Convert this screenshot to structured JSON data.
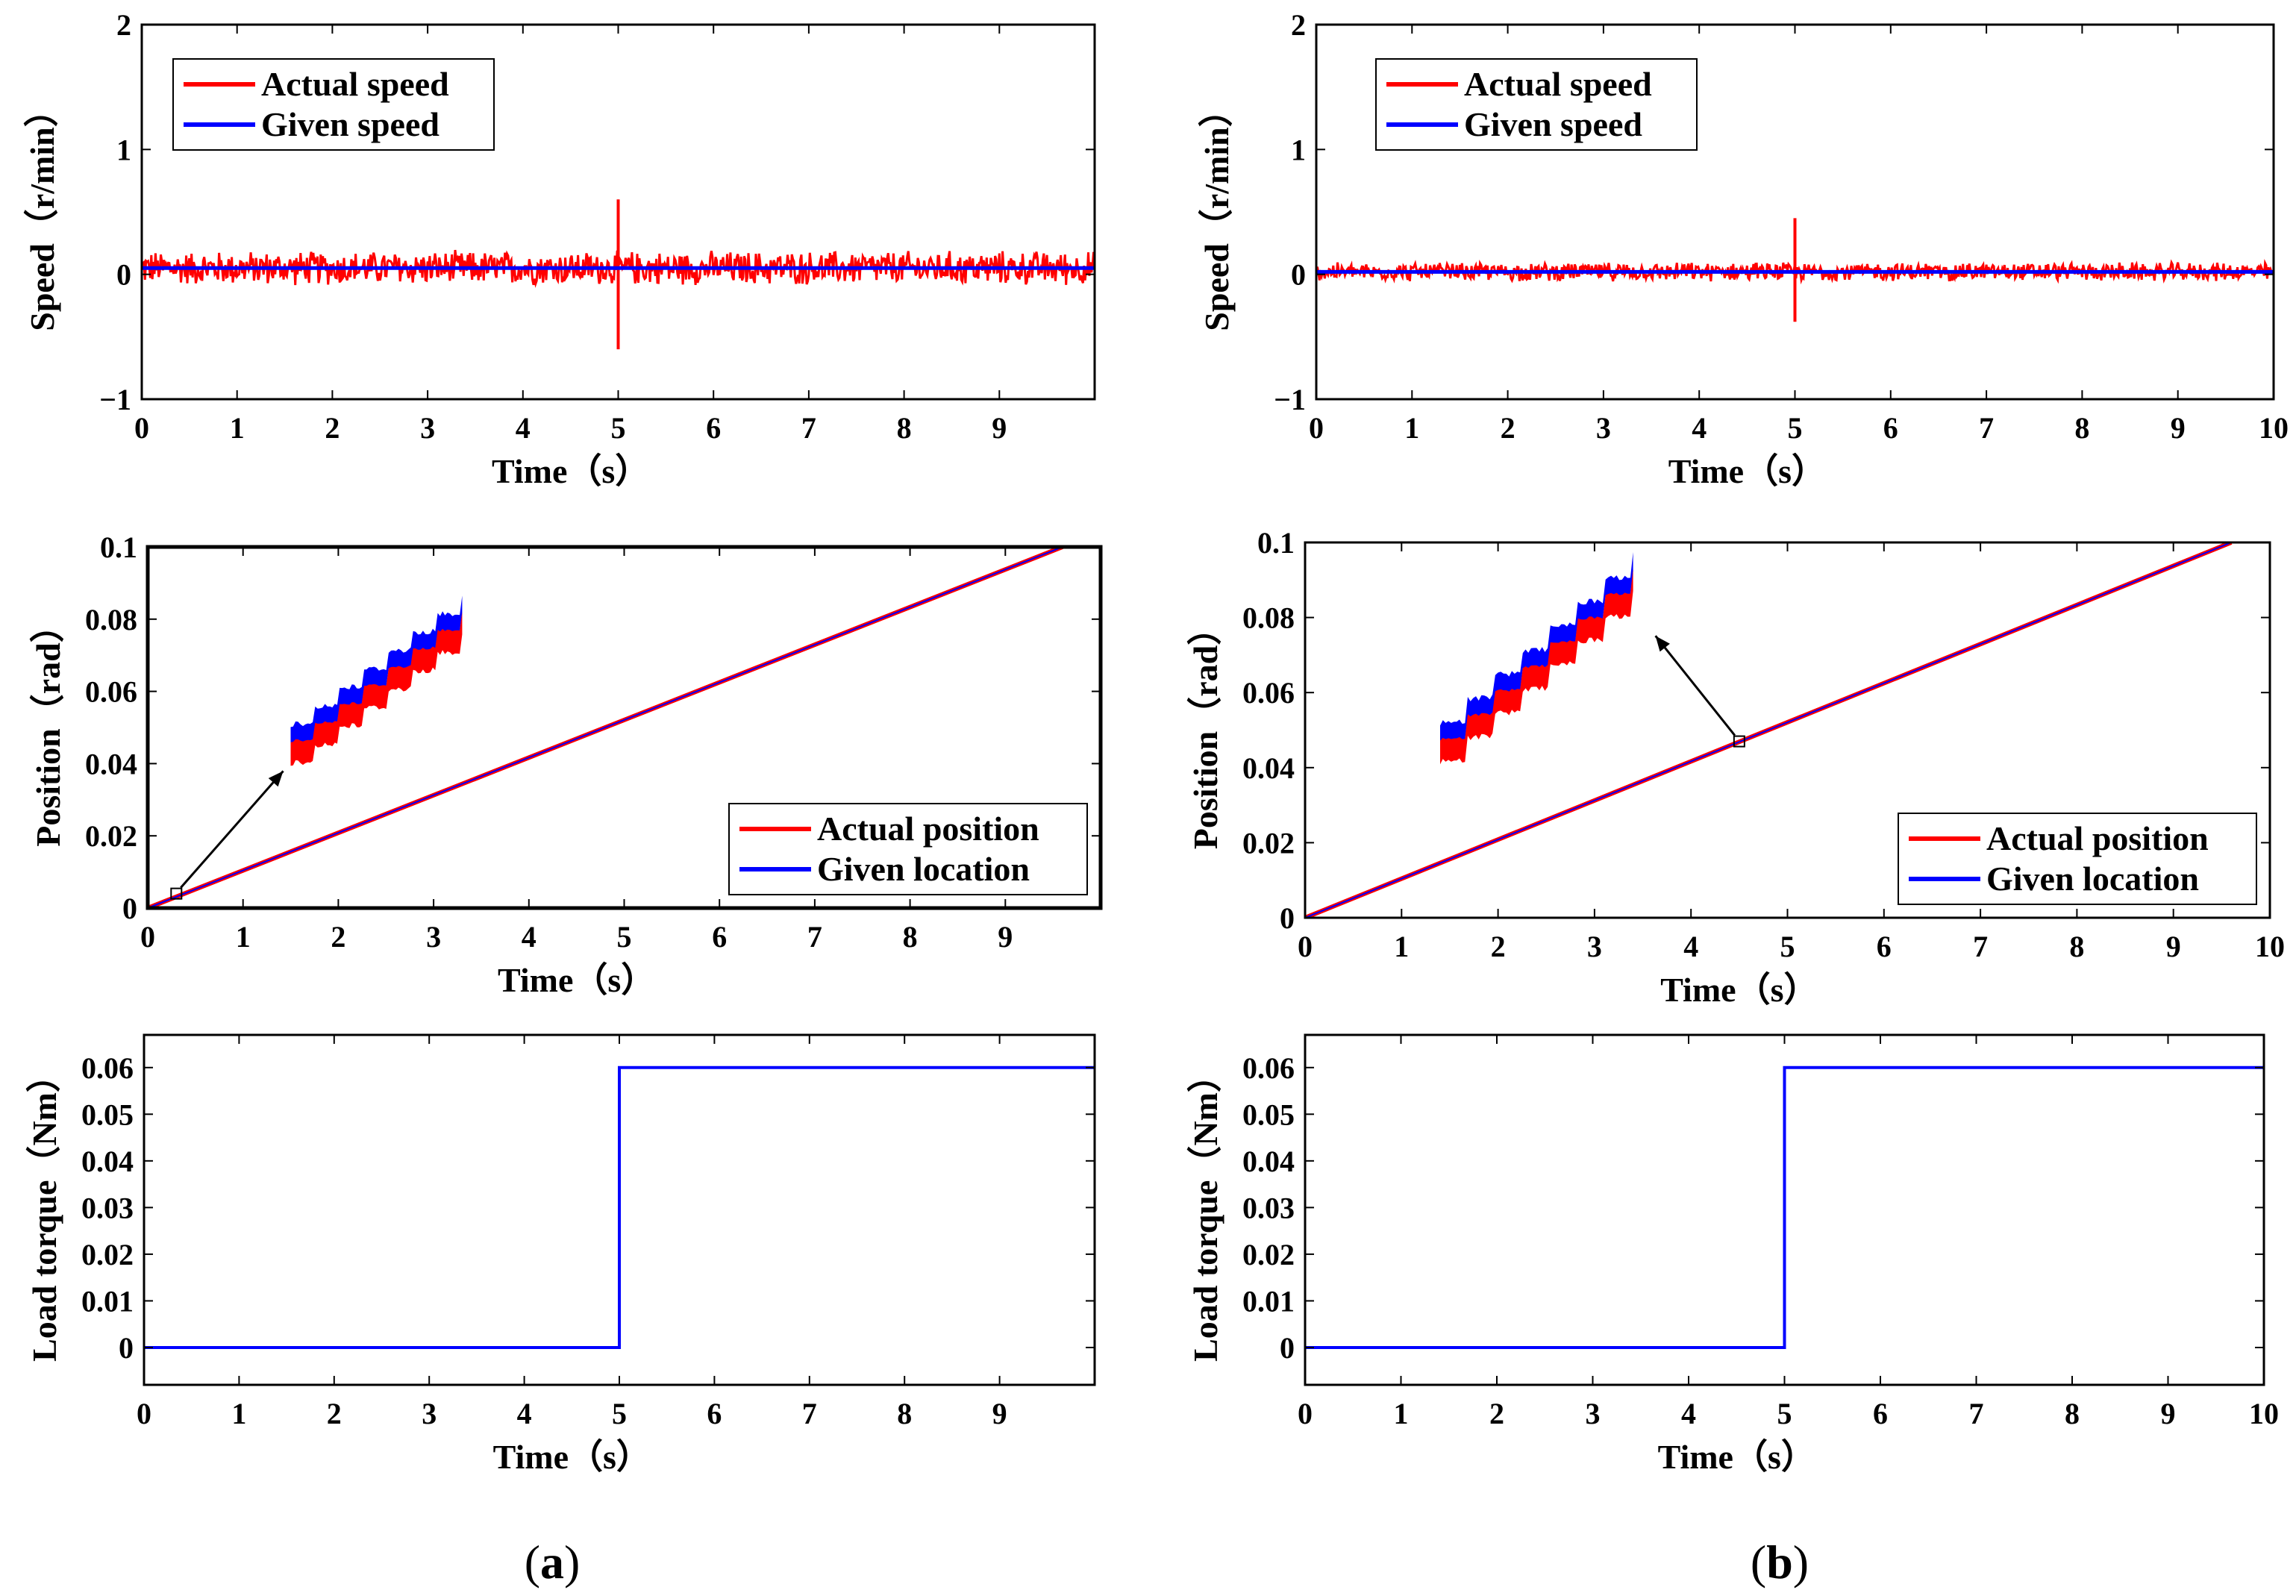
{
  "figure": {
    "panel_labels": [
      {
        "open": "(",
        "letter": "a",
        "close": ")"
      },
      {
        "open": "(",
        "letter": "b",
        "close": ")"
      }
    ]
  },
  "chart_data": [
    {
      "id": "a1",
      "type": "line",
      "column": "a",
      "xlabel": "Time（s）",
      "ylabel": "Speed（r/min）",
      "xlim": [
        0,
        10
      ],
      "ylim": [
        -1,
        2
      ],
      "xticks": [
        "0",
        "1",
        "2",
        "3",
        "4",
        "5",
        "6",
        "7",
        "8",
        "9"
      ],
      "yticks": [
        "−1",
        "0",
        "1",
        "2"
      ],
      "legend": {
        "position": "top-left",
        "entries": [
          "Actual speed",
          "Given speed"
        ]
      },
      "series": [
        {
          "name": "Actual speed",
          "color": "#ff0000",
          "kind": "noise",
          "mean": 0.05,
          "band": 0.15,
          "spike_at": 5,
          "spike_range": [
            -0.6,
            0.6
          ]
        },
        {
          "name": "Given speed",
          "color": "#0000ff",
          "kind": "constant",
          "value": 0.05
        }
      ]
    },
    {
      "id": "a2",
      "type": "line",
      "column": "a",
      "xlabel": "Time（s）",
      "ylabel": "Position（rad）",
      "xlim": [
        0,
        10
      ],
      "ylim": [
        0,
        0.1
      ],
      "xticks": [
        "0",
        "1",
        "2",
        "3",
        "4",
        "5",
        "6",
        "7",
        "8",
        "9"
      ],
      "yticks": [
        "0",
        "0.02",
        "0.04",
        "0.06",
        "0.08",
        "0.1"
      ],
      "legend": {
        "position": "bottom-right",
        "entries": [
          "Actual position",
          "Given location"
        ]
      },
      "series": [
        {
          "name": "Actual position",
          "color": "#ff0000",
          "kind": "ramp",
          "x": [
            0,
            9.6
          ],
          "y": [
            0,
            0.1
          ]
        },
        {
          "name": "Given location",
          "color": "#0000ff",
          "kind": "ramp",
          "x": [
            0,
            9.6
          ],
          "y": [
            0,
            0.1
          ]
        }
      ],
      "zoom": {
        "at": [
          0.3,
          0.004
        ],
        "inset_x": [
          1.5,
          3.3
        ],
        "inset_y": [
          0.04,
          0.082
        ]
      }
    },
    {
      "id": "a3",
      "type": "line",
      "column": "a",
      "xlabel": "Time（s）",
      "ylabel": "Load torque（Nm）",
      "xlim": [
        0,
        10
      ],
      "ylim": [
        -0.008,
        0.067
      ],
      "xticks": [
        "0",
        "1",
        "2",
        "3",
        "4",
        "5",
        "6",
        "7",
        "8",
        "9"
      ],
      "yticks": [
        "0",
        "0.01",
        "0.02",
        "0.03",
        "0.04",
        "0.05",
        "0.06"
      ],
      "series": [
        {
          "name": "Load torque",
          "color": "#0000ff",
          "kind": "step",
          "x": [
            0,
            5,
            5,
            10
          ],
          "y": [
            0,
            0,
            0.06,
            0.06
          ]
        }
      ]
    },
    {
      "id": "b1",
      "type": "line",
      "column": "b",
      "xlabel": "Time（s）",
      "ylabel": "Speed（r/min）",
      "xlim": [
        0,
        10
      ],
      "ylim": [
        -1,
        2
      ],
      "xticks": [
        "0",
        "1",
        "2",
        "3",
        "4",
        "5",
        "6",
        "7",
        "8",
        "9",
        "10"
      ],
      "yticks": [
        "−1",
        "0",
        "1",
        "2"
      ],
      "legend": {
        "position": "top-left",
        "entries": [
          "Actual speed",
          "Given speed"
        ]
      },
      "series": [
        {
          "name": "Actual speed",
          "color": "#ff0000",
          "kind": "noise",
          "mean": 0.02,
          "band": 0.08,
          "spike_at": 5,
          "spike_range": [
            -0.38,
            0.45
          ]
        },
        {
          "name": "Given speed",
          "color": "#0000ff",
          "kind": "constant",
          "value": 0.02
        }
      ]
    },
    {
      "id": "b2",
      "type": "line",
      "column": "b",
      "xlabel": "Time（s）",
      "ylabel": "Position（rad）",
      "xlim": [
        0,
        10
      ],
      "ylim": [
        0,
        0.1
      ],
      "xticks": [
        "0",
        "1",
        "2",
        "3",
        "4",
        "5",
        "6",
        "7",
        "8",
        "9",
        "10"
      ],
      "yticks": [
        "0",
        "0.02",
        "0.04",
        "0.06",
        "0.08",
        "0.1"
      ],
      "legend": {
        "position": "bottom-right",
        "entries": [
          "Actual position",
          "Given location"
        ]
      },
      "series": [
        {
          "name": "Actual position",
          "color": "#ff0000",
          "kind": "ramp",
          "x": [
            0,
            9.6
          ],
          "y": [
            0,
            0.1
          ]
        },
        {
          "name": "Given location",
          "color": "#0000ff",
          "kind": "ramp",
          "x": [
            0,
            9.6
          ],
          "y": [
            0,
            0.1
          ]
        }
      ],
      "zoom": {
        "at": [
          4.5,
          0.047
        ],
        "inset_x": [
          1.4,
          3.4
        ],
        "inset_y": [
          0.04,
          0.093
        ]
      }
    },
    {
      "id": "b3",
      "type": "line",
      "column": "b",
      "xlabel": "Time（s）",
      "ylabel": "Load torque（Nm）",
      "xlim": [
        0,
        10
      ],
      "ylim": [
        -0.008,
        0.067
      ],
      "xticks": [
        "0",
        "1",
        "2",
        "3",
        "4",
        "5",
        "6",
        "7",
        "8",
        "9",
        "10"
      ],
      "yticks": [
        "0",
        "0.01",
        "0.02",
        "0.03",
        "0.04",
        "0.05",
        "0.06"
      ],
      "series": [
        {
          "name": "Load torque",
          "color": "#0000ff",
          "kind": "step",
          "x": [
            0,
            5,
            5,
            10
          ],
          "y": [
            0,
            0,
            0.06,
            0.06
          ]
        }
      ]
    }
  ]
}
